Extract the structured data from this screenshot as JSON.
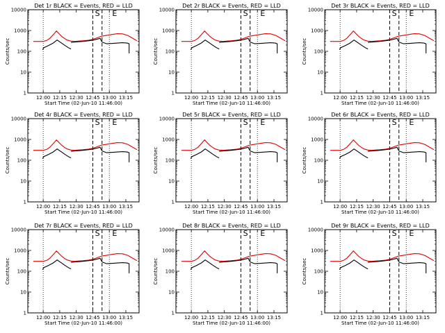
{
  "chart_data": {
    "type": "line",
    "scale": "log",
    "ylim": [
      1,
      10000
    ],
    "ytick_labels": [
      "1",
      "10",
      "100",
      "1000",
      "10000"
    ],
    "ylabel": "Counts/sec",
    "xlabel": "Start Time (02-Jun-10 11:46:00)",
    "xtick_labels": [
      "12:00",
      "12:15",
      "12:30",
      "12:45",
      "13:00",
      "13:15"
    ],
    "xtick_times": [
      12.0,
      12.25,
      12.5,
      12.75,
      13.0,
      13.25
    ],
    "xlim_time": [
      11.767,
      13.45
    ],
    "markers": [
      {
        "label": "S",
        "time": 12.82
      },
      {
        "label": "E",
        "time": 13.08
      }
    ],
    "dash_lines": [
      12.75,
      12.89
    ],
    "dot_lines": [
      12.0,
      13.0
    ],
    "series": [
      {
        "name": "Events",
        "color": "#000000"
      },
      {
        "name": "LLD",
        "color": "#e00000"
      }
    ],
    "series_data": {
      "lld": {
        "t": [
          11.85,
          12.0,
          12.05,
          12.1,
          12.15,
          12.2,
          12.24,
          12.28,
          12.32,
          12.36,
          12.42,
          12.48,
          12.52,
          12.6,
          12.68,
          12.75,
          12.82,
          12.87,
          12.92,
          12.98,
          13.05,
          13.12,
          13.2,
          13.28,
          13.35,
          13.42
        ],
        "v": [
          300,
          300,
          330,
          420,
          620,
          950,
          700,
          520,
          420,
          350,
          310,
          300,
          310,
          320,
          340,
          380,
          450,
          520,
          560,
          600,
          650,
          700,
          690,
          580,
          430,
          320
        ]
      },
      "ev": [
        {
          "t": [
            11.99,
            12.01,
            12.08,
            12.15,
            12.21,
            12.27,
            12.33,
            12.38,
            12.42
          ],
          "v": [
            120,
            150,
            190,
            250,
            350,
            260,
            190,
            150,
            130
          ]
        },
        {
          "t": [
            12.42,
            12.5,
            12.6,
            12.68,
            12.75,
            12.82,
            12.86,
            12.89
          ],
          "v": [
            270,
            285,
            300,
            320,
            345,
            390,
            420,
            280
          ]
        },
        {
          "t": [
            12.89,
            12.96,
            13.05,
            13.12,
            13.2,
            13.27,
            13.3,
            13.3
          ],
          "v": [
            280,
            230,
            240,
            250,
            260,
            250,
            230,
            80
          ]
        }
      ]
    },
    "panels": [
      {
        "title": "Det 1r BLACK = Events, RED = LLD"
      },
      {
        "title": "Det 2r BLACK = Events, RED = LLD"
      },
      {
        "title": "Det 3r BLACK = Events, RED = LLD"
      },
      {
        "title": "Det 4r BLACK = Events, RED = LLD"
      },
      {
        "title": "Det 5r BLACK = Events, RED = LLD"
      },
      {
        "title": "Det 6r BLACK = Events, RED = LLD"
      },
      {
        "title": "Det 7r BLACK = Events, RED = LLD"
      },
      {
        "title": "Det 8r BLACK = Events, RED = LLD"
      },
      {
        "title": "Det 9r BLACK = Events, RED = LLD"
      }
    ]
  }
}
